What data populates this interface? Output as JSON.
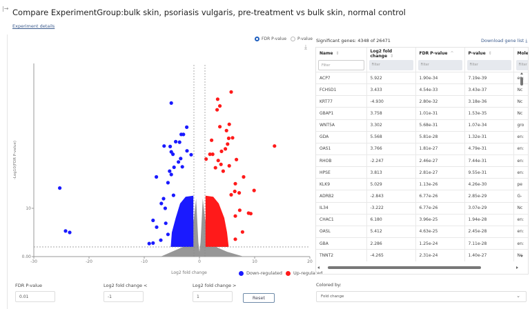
{
  "header": {
    "title": "Compare ExperimentGroup:bulk skin, psoriasis vulgaris, pre-treatment vs bulk skin, normal control",
    "experiment_details_link": "Experiment details"
  },
  "plot_controls": {
    "pvalue_options": [
      {
        "label": "FDR P-value",
        "selected": true
      },
      {
        "label": "P-value",
        "selected": false
      }
    ]
  },
  "chart_data": {
    "type": "scatter",
    "xlabel": "Log2 fold change",
    "ylabel": "-Log10(FDR P-value)",
    "xlim": [
      -30,
      20
    ],
    "ylim": [
      0,
      40
    ],
    "x_ticks": [
      "-30",
      "-20",
      "-10",
      "0",
      "10",
      "20"
    ],
    "x_tick_values": [
      -30,
      -20,
      -10,
      0,
      10,
      20
    ],
    "y_ticks": [
      "0.00",
      "10"
    ],
    "y_tick_values": [
      0,
      10
    ],
    "thresholds": {
      "fdr_pvalue": 0.01,
      "log2fc_low": -1,
      "log2fc_high": 1
    },
    "grid": false,
    "legend_position": "bottom-right",
    "colors": {
      "down": "#1a1aff",
      "up": "#ff1a1a",
      "ns": "#8c8c8c"
    },
    "legend": [
      {
        "label": "Down-regulated",
        "color": "#1a1aff"
      },
      {
        "label": "Up-regulated",
        "color": "#ff1a1a"
      }
    ],
    "series": [
      {
        "name": "Down-regulated",
        "points": [
          [
            -5.1,
            31.8
          ],
          [
            -2.3,
            26.8
          ],
          [
            -3.3,
            25.3
          ],
          [
            -2.9,
            25.3
          ],
          [
            -4.3,
            23.8
          ],
          [
            -3.6,
            23.7
          ],
          [
            -6.4,
            22.9
          ],
          [
            -5.3,
            22.8
          ],
          [
            -2.25,
            21.9
          ],
          [
            -5.1,
            21.7
          ],
          [
            -4.8,
            21.2
          ],
          [
            -1.5,
            21.1
          ],
          [
            -3.4,
            20.3
          ],
          [
            -3.8,
            19.6
          ],
          [
            -4.6,
            18.5
          ],
          [
            -3.1,
            18.6
          ],
          [
            -5.4,
            17.7
          ],
          [
            -7.8,
            16.5
          ],
          [
            -25.3,
            14.2
          ],
          [
            -5.1,
            17.0
          ],
          [
            -5.7,
            15.3
          ],
          [
            -6.5,
            12.0
          ],
          [
            -6.9,
            11.0
          ],
          [
            -6.2,
            10.0
          ],
          [
            -8.4,
            7.5
          ],
          [
            -7.75,
            6.1
          ],
          [
            -24.25,
            5.3
          ],
          [
            -23.5,
            5.0
          ],
          [
            -7.0,
            3.4
          ],
          [
            -9.1,
            2.7
          ],
          [
            -8.4,
            2.8
          ],
          [
            -4.7,
            12.7
          ],
          [
            -6.1,
            6.9
          ],
          [
            -5.7,
            4.6
          ]
        ]
      },
      {
        "name": "Up-regulated",
        "points": [
          [
            5.75,
            34.1
          ],
          [
            3.3,
            32.6
          ],
          [
            3.7,
            31.2
          ],
          [
            3.2,
            30.4
          ],
          [
            3.7,
            26.9
          ],
          [
            5.4,
            27.4
          ],
          [
            4.9,
            26.1
          ],
          [
            2.2,
            24.1
          ],
          [
            5.3,
            24.5
          ],
          [
            6.0,
            24.6
          ],
          [
            5.1,
            23.3
          ],
          [
            13.6,
            22.9
          ],
          [
            4.7,
            22.3
          ],
          [
            4.0,
            21.8
          ],
          [
            1.9,
            21.2
          ],
          [
            2.4,
            21.2
          ],
          [
            6.7,
            20.1
          ],
          [
            3.4,
            19.9
          ],
          [
            1.2,
            20.2
          ],
          [
            8.0,
            16.5
          ],
          [
            9.9,
            13.7
          ],
          [
            7.2,
            13.2
          ],
          [
            8.9,
            9.0
          ],
          [
            9.3,
            8.9
          ],
          [
            7.8,
            5.1
          ],
          [
            7.3,
            9.6
          ],
          [
            6.5,
            15.1
          ],
          [
            6.4,
            13.5
          ],
          [
            5.75,
            12.8
          ],
          [
            5.4,
            18.8
          ],
          [
            3.9,
            19.1
          ],
          [
            2.9,
            18.4
          ],
          [
            4.3,
            17.7
          ],
          [
            6.5,
            8.4
          ],
          [
            6.5,
            3.6
          ]
        ]
      }
    ]
  },
  "controls": {
    "fdr_label": "FDR P-value",
    "fdr_value": "0.01",
    "lfc_lt_label": "Log2 fold change <",
    "lfc_lt_value": "-1",
    "lfc_gt_label": "Log2 fold change >",
    "lfc_gt_value": "1",
    "reset_label": "Reset"
  },
  "table": {
    "significant_text": "Significant genes: 4348 of 26471",
    "download_label": "Download gene list",
    "filter_placeholder": "Filter",
    "columns": [
      {
        "label": "Name",
        "sort": "⇕"
      },
      {
        "label": "Log2 fold change",
        "sort": "⇕"
      },
      {
        "label": "FDR P-value",
        "sort": "^"
      },
      {
        "label": "P-value",
        "sort": "⇕"
      },
      {
        "label": "Molec",
        "sort": ""
      }
    ],
    "rows": [
      [
        "ACP7",
        "5.922",
        "1.90e-34",
        "7.19e-39",
        "en:"
      ],
      [
        "FCHSD1",
        "3.433",
        "4.54e-33",
        "3.43e-37",
        "Nc"
      ],
      [
        "KRT77",
        "-4.930",
        "2.80e-32",
        "3.18e-36",
        "Nc"
      ],
      [
        "GBAP1",
        "3.758",
        "1.01e-31",
        "1.53e-35",
        "Nc"
      ],
      [
        "WNT5A",
        "3.302",
        "5.68e-31",
        "1.07e-34",
        "gro"
      ],
      [
        "GDA",
        "5.568",
        "5.81e-28",
        "1.32e-31",
        "en:"
      ],
      [
        "OAS1",
        "3.766",
        "1.81e-27",
        "4.79e-31",
        "en:"
      ],
      [
        "RHOB",
        "-2.247",
        "2.46e-27",
        "7.44e-31",
        "en:"
      ],
      [
        "HPSE",
        "3.813",
        "2.81e-27",
        "9.55e-31",
        "en:"
      ],
      [
        "KLK9",
        "5.029",
        "1.13e-26",
        "4.26e-30",
        "pe"
      ],
      [
        "ADRB2",
        "-2.843",
        "6.77e-26",
        "2.85e-29",
        "G-"
      ],
      [
        "IL34",
        "-3.222",
        "6.77e-26",
        "3.07e-29",
        "Nc"
      ],
      [
        "CHAC1",
        "6.180",
        "3.96e-25",
        "1.94e-28",
        "en:"
      ],
      [
        "OASL",
        "5.412",
        "4.63e-25",
        "2.45e-28",
        "en:"
      ],
      [
        "GBA",
        "2.286",
        "1.25e-24",
        "7.11e-28",
        "en:"
      ],
      [
        "TNNT2",
        "-4.265",
        "2.31e-24",
        "1.40e-27",
        "Nc"
      ]
    ]
  },
  "colored_by": {
    "label": "Colored by:",
    "value": "Fold change"
  }
}
